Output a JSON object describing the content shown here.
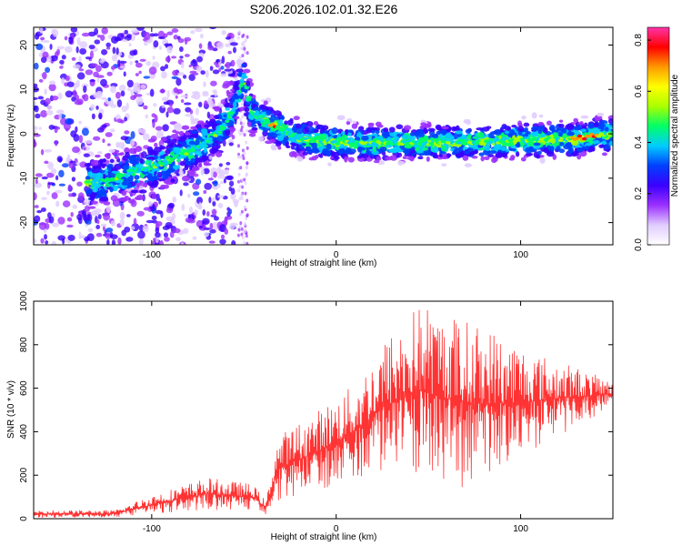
{
  "title": "S206.2026.102.01.32.E26",
  "chart_data": [
    {
      "type": "heatmap",
      "name": "spectrogram",
      "xlabel": "Height of straight line (km)",
      "ylabel": "Frequency (Hz)",
      "xlim": [
        -164,
        150
      ],
      "ylim": [
        -25,
        24
      ],
      "xticks": [
        -100,
        0,
        100
      ],
      "yticks": [
        -20,
        -10,
        0,
        10,
        20
      ],
      "colorbar": {
        "label": "Normalized spectral amplitude",
        "range": [
          0,
          0.85
        ],
        "ticks": [
          0.0,
          0.2,
          0.4,
          0.6,
          0.8
        ],
        "colormap": [
          "#ffffff",
          "#e0ccff",
          "#9b30ff",
          "#3b00ff",
          "#0040ff",
          "#00ccff",
          "#00ff66",
          "#aaff00",
          "#ffff00",
          "#ff9900",
          "#ff0000",
          "#ff33aa"
        ]
      },
      "ridge": [
        {
          "x": -130,
          "y": -11
        },
        {
          "x": -110,
          "y": -9
        },
        {
          "x": -90,
          "y": -6
        },
        {
          "x": -75,
          "y": -3
        },
        {
          "x": -62,
          "y": 1
        },
        {
          "x": -55,
          "y": 6
        },
        {
          "x": -50,
          "y": 13
        },
        {
          "x": -46,
          "y": 5
        },
        {
          "x": -35,
          "y": 2
        },
        {
          "x": -20,
          "y": -1
        },
        {
          "x": 0,
          "y": -2
        },
        {
          "x": 30,
          "y": -2
        },
        {
          "x": 60,
          "y": -2
        },
        {
          "x": 100,
          "y": -1.5
        },
        {
          "x": 130,
          "y": -1
        },
        {
          "x": 148,
          "y": 0
        }
      ]
    },
    {
      "type": "line",
      "name": "snr",
      "xlabel": "Height of straight line (km)",
      "ylabel": "SNR (10 * v/v)",
      "xlim": [
        -164,
        150
      ],
      "ylim": [
        0,
        1000
      ],
      "xticks": [
        -100,
        0,
        100
      ],
      "yticks": [
        0,
        200,
        400,
        600,
        800,
        1000
      ],
      "series": [
        {
          "name": "SNR",
          "color": "#ff3333",
          "envelope": [
            {
              "x": -164,
              "low": 5,
              "high": 40
            },
            {
              "x": -120,
              "low": 5,
              "high": 40
            },
            {
              "x": -100,
              "low": 20,
              "high": 110
            },
            {
              "x": -70,
              "low": 40,
              "high": 190
            },
            {
              "x": -45,
              "low": 40,
              "high": 160
            },
            {
              "x": -38,
              "low": 20,
              "high": 80
            },
            {
              "x": -32,
              "low": 80,
              "high": 380
            },
            {
              "x": -10,
              "low": 120,
              "high": 500
            },
            {
              "x": 10,
              "low": 180,
              "high": 620
            },
            {
              "x": 25,
              "low": 200,
              "high": 820
            },
            {
              "x": 45,
              "low": 180,
              "high": 1000
            },
            {
              "x": 70,
              "low": 140,
              "high": 920
            },
            {
              "x": 90,
              "low": 200,
              "high": 860
            },
            {
              "x": 110,
              "low": 330,
              "high": 760
            },
            {
              "x": 130,
              "low": 420,
              "high": 700
            },
            {
              "x": 150,
              "low": 520,
              "high": 630
            }
          ]
        }
      ]
    }
  ]
}
